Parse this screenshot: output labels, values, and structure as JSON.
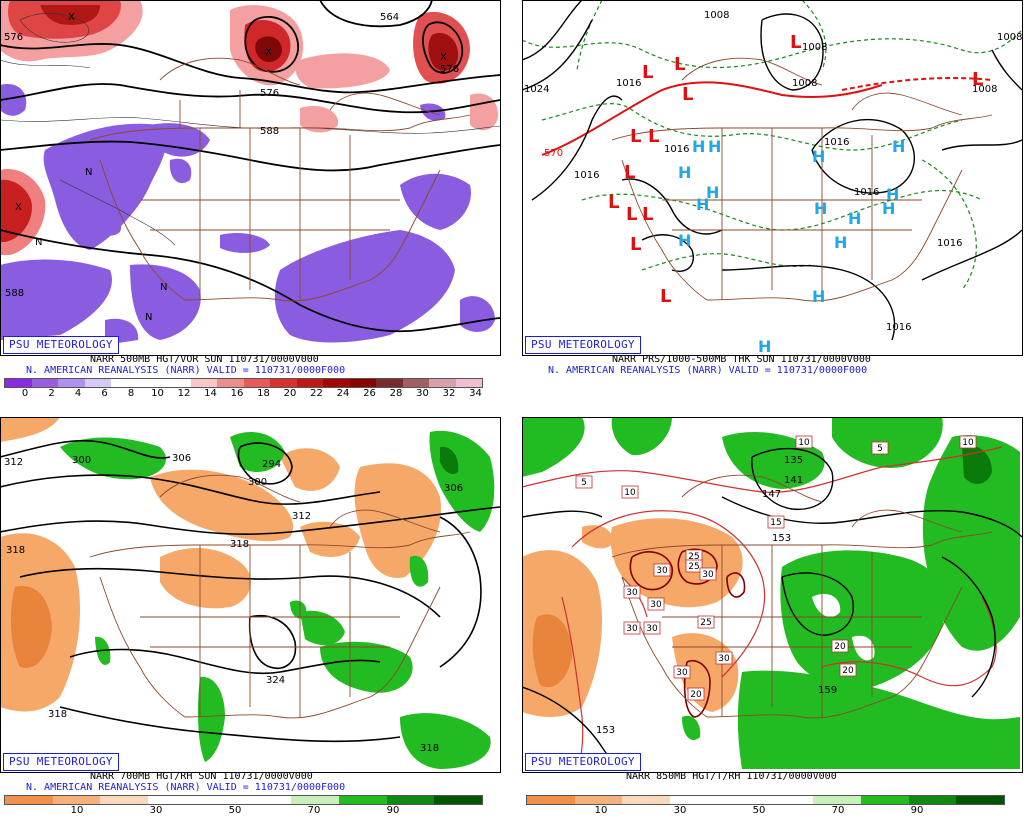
{
  "panels": {
    "p500": {
      "badge": "PSU METEOROLOGY",
      "line1": "NARR 500MB HGT/VOR SUN 110731/0000V000",
      "line2": "N. AMERICAN REANALYSIS (NARR) VALID = 110731/0000F000",
      "contour_labels": [
        "576",
        "564",
        "576",
        "588",
        "588",
        "576",
        "564",
        "588"
      ],
      "marker_labels": [
        "X",
        "N"
      ],
      "scale_ticks": [
        "0",
        "2",
        "4",
        "6",
        "8",
        "10",
        "12",
        "14",
        "16",
        "18",
        "20",
        "22",
        "24",
        "26",
        "28",
        "30",
        "32",
        "34"
      ],
      "scale_colors": [
        "#8a2be2",
        "#9a5ce0",
        "#b090f0",
        "#d8c8f8",
        "#ffffff",
        "#ffffff",
        "#ffffff",
        "#f6c8c8",
        "#f08c8c",
        "#e85a5a",
        "#d83030",
        "#c01818",
        "#a00808",
        "#880000",
        "#7a2a2a",
        "#a06060",
        "#d8a0a8",
        "#f0c0d0"
      ]
    },
    "pprs": {
      "badge": "PSU METEOROLOGY",
      "line1": "NARR PRS/1000-500MB THK SUN 110731/0000V000",
      "line2": "N. AMERICAN REANALYSIS (NARR) VALID = 110731/0000F000",
      "contour_labels": [
        "1008",
        "1016",
        "1024",
        "1016",
        "1016",
        "1008",
        "1008",
        "1016",
        "1016",
        "1016",
        "1016",
        "1008",
        "1008",
        "1016",
        "1016",
        "570",
        "1008"
      ],
      "low_letter": "L",
      "high_letter": "H"
    },
    "p700": {
      "badge": "PSU METEOROLOGY",
      "line1": "NARR 700MB HGT/RH SUN 110731/0000V000",
      "line2": "N. AMERICAN REANALYSIS (NARR) VALID = 110731/0000F000",
      "contour_labels": [
        "312",
        "300",
        "306",
        "294",
        "300",
        "312",
        "318",
        "318",
        "324",
        "318",
        "318",
        "306"
      ],
      "scale_ticks": [
        "10",
        "30",
        "50",
        "70",
        "90"
      ],
      "scale_colors": [
        "#f0904a",
        "#f5b080",
        "#fad8bc",
        "#ffffff",
        "#ffffff",
        "#ffffff",
        "#c8f0b8",
        "#22bb22",
        "#118811",
        "#005500"
      ]
    },
    "p850": {
      "badge": "PSU METEOROLOGY",
      "line1": "NARR 850MB HGT/T/RH 110731/0000V000",
      "contour_labels": [
        "135",
        "141",
        "147",
        "153",
        "153",
        "159"
      ],
      "temp_boxes": [
        "10",
        "5",
        "10",
        "5",
        "10",
        "15",
        "25",
        "30",
        "25",
        "30",
        "30",
        "30",
        "30",
        "25",
        "30",
        "30",
        "30",
        "20",
        "20",
        "20"
      ],
      "scale_ticks": [
        "10",
        "30",
        "50",
        "70",
        "90"
      ],
      "scale_colors": [
        "#f0904a",
        "#f5b080",
        "#fad8bc",
        "#ffffff",
        "#ffffff",
        "#ffffff",
        "#c8f0b8",
        "#22bb22",
        "#118811",
        "#005500"
      ]
    }
  }
}
